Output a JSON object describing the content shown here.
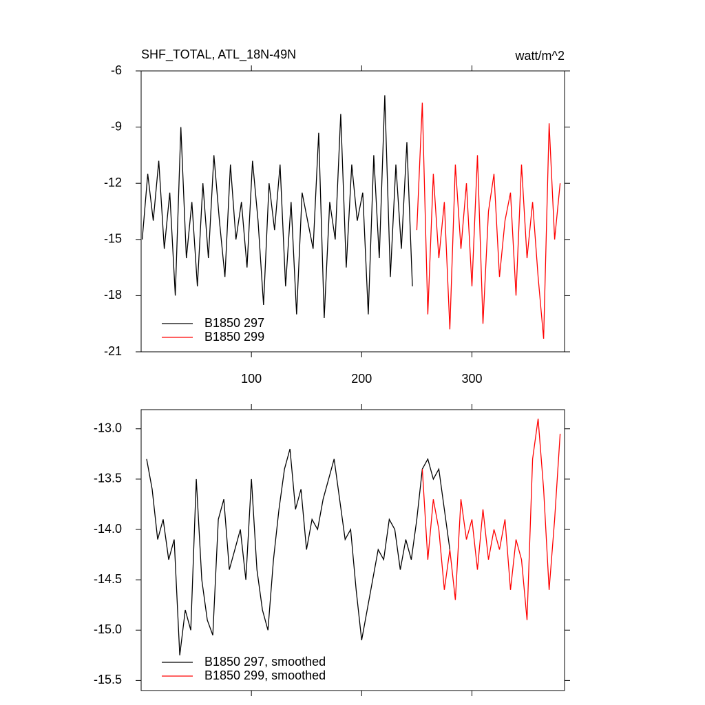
{
  "chart_data": [
    {
      "type": "line",
      "title": "SHF_TOTAL, ATL_18N-49N",
      "units": "watt/m^2",
      "xlim": [
        0,
        384
      ],
      "xticks": [
        100,
        200,
        300
      ],
      "xtick_labels": true,
      "ylim": [
        -21,
        -6
      ],
      "yticks": [
        -6,
        -9,
        -12,
        -15,
        -18,
        -21
      ],
      "series": [
        {
          "name": "B1850 297",
          "color": "#000000",
          "x": [
            1,
            6,
            11,
            16,
            21,
            26,
            31,
            36,
            41,
            46,
            51,
            56,
            61,
            66,
            71,
            76,
            81,
            86,
            91,
            96,
            101,
            106,
            111,
            116,
            121,
            126,
            131,
            136,
            141,
            146,
            151,
            156,
            161,
            166,
            171,
            176,
            181,
            186,
            191,
            196,
            201,
            206,
            211,
            216,
            221,
            226,
            231,
            236,
            241,
            246
          ],
          "values": [
            -15,
            -11.5,
            -14,
            -10.8,
            -15.5,
            -12.5,
            -18,
            -9,
            -16,
            -13,
            -17.5,
            -12,
            -16,
            -10.5,
            -14,
            -17,
            -11,
            -15,
            -13,
            -16.5,
            -10.8,
            -14,
            -18.5,
            -12,
            -14.5,
            -11,
            -17.5,
            -13,
            -19,
            -12.5,
            -14,
            -15.5,
            -9.3,
            -19.2,
            -13,
            -15,
            -8.3,
            -16.5,
            -11,
            -14,
            -12.5,
            -19,
            -10.5,
            -16,
            -7.3,
            -17,
            -11,
            -15.5,
            -9.8,
            -17.5
          ]
        },
        {
          "name": "B1850 299",
          "color": "#ff0000",
          "x": [
            250,
            255,
            260,
            265,
            270,
            275,
            280,
            285,
            290,
            295,
            300,
            305,
            310,
            315,
            320,
            325,
            330,
            335,
            340,
            345,
            350,
            355,
            360,
            365,
            370,
            375,
            380
          ],
          "values": [
            -14.5,
            -7.7,
            -19,
            -11.5,
            -16,
            -13,
            -19.8,
            -11,
            -15.5,
            -12,
            -17.5,
            -10.5,
            -19.5,
            -13.5,
            -11.5,
            -17,
            -14,
            -12.5,
            -18,
            -11,
            -16,
            -13,
            -17,
            -20.3,
            -8.8,
            -15,
            -12
          ]
        }
      ]
    },
    {
      "type": "line",
      "xlim": [
        0,
        384
      ],
      "xticks": [
        100,
        200,
        300
      ],
      "xtick_labels": false,
      "ylim": [
        -15.6,
        -12.81
      ],
      "yticks": [
        {
          "value": -13,
          "label": "-13.0"
        },
        -13.5,
        {
          "value": -14,
          "label": "-14.0"
        },
        -14.5,
        {
          "value": -15,
          "label": "-15.0"
        },
        -15.5
      ],
      "series": [
        {
          "name": "B1850 297, smoothed",
          "color": "#000000",
          "x": [
            5,
            10,
            15,
            20,
            25,
            30,
            35,
            40,
            45,
            50,
            55,
            60,
            65,
            70,
            75,
            80,
            85,
            90,
            95,
            100,
            105,
            110,
            115,
            120,
            125,
            130,
            135,
            140,
            145,
            150,
            155,
            160,
            165,
            170,
            175,
            180,
            185,
            190,
            195,
            200,
            205,
            210,
            215,
            220,
            225,
            230,
            235,
            240,
            245,
            250,
            255,
            260,
            265,
            270,
            275,
            280
          ],
          "values": [
            -13.3,
            -13.6,
            -14.1,
            -13.9,
            -14.3,
            -14.1,
            -15.25,
            -14.8,
            -15.0,
            -13.5,
            -14.5,
            -14.9,
            -15.05,
            -13.9,
            -13.7,
            -14.4,
            -14.2,
            -14.0,
            -14.5,
            -13.5,
            -14.4,
            -14.8,
            -15.0,
            -14.3,
            -13.8,
            -13.4,
            -13.2,
            -13.8,
            -13.6,
            -14.2,
            -13.9,
            -14.0,
            -13.7,
            -13.5,
            -13.3,
            -13.7,
            -14.1,
            -14.0,
            -14.6,
            -15.1,
            -14.8,
            -14.5,
            -14.2,
            -14.3,
            -13.9,
            -14.0,
            -14.4,
            -14.1,
            -14.3,
            -13.9,
            -13.4,
            -13.3,
            -13.5,
            -13.4,
            -13.8,
            -14.2
          ]
        },
        {
          "name": "B1850 299, smoothed",
          "color": "#ff0000",
          "x": [
            255,
            260,
            265,
            270,
            275,
            280,
            285,
            290,
            295,
            300,
            305,
            310,
            315,
            320,
            325,
            330,
            335,
            340,
            345,
            350,
            355,
            360,
            365,
            370,
            375,
            380
          ],
          "values": [
            -13.4,
            -14.3,
            -13.7,
            -14.0,
            -14.6,
            -14.2,
            -14.7,
            -13.7,
            -14.1,
            -13.9,
            -14.4,
            -13.8,
            -14.3,
            -14.0,
            -14.2,
            -13.9,
            -14.6,
            -14.1,
            -14.3,
            -14.9,
            -13.3,
            -12.9,
            -13.6,
            -14.6,
            -13.9,
            -13.05
          ]
        }
      ]
    }
  ]
}
